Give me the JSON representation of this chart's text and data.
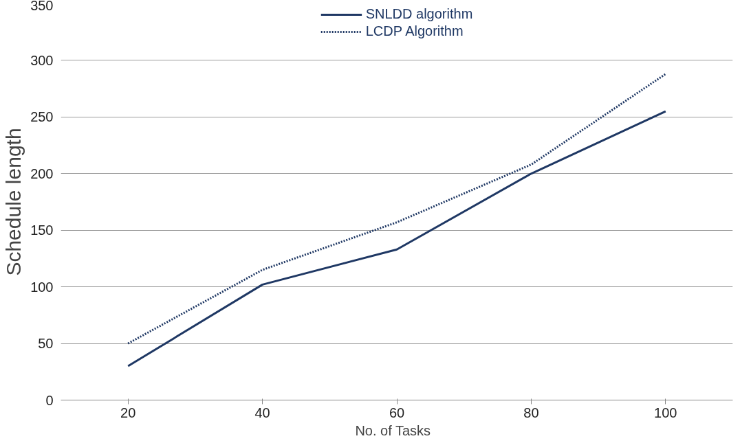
{
  "chart_data": {
    "type": "line",
    "xlabel": "No.  of  Tasks",
    "ylabel": "Schedule length",
    "categories": [
      "20",
      "40",
      "60",
      "80",
      "100"
    ],
    "series": [
      {
        "name": "SNLDD algorithm",
        "color": "#1f3864",
        "values": [
          30,
          102,
          133,
          200,
          255
        ],
        "line_style": "solid"
      },
      {
        "name": "LCDP Algorithm",
        "color": "#1f3864",
        "values": [
          50,
          115,
          157,
          208,
          288
        ],
        "line_style": "dotted"
      }
    ],
    "ylim": [
      0,
      350
    ],
    "yticks": [
      0,
      50,
      100,
      150,
      200,
      250,
      300,
      350
    ],
    "grid": "y",
    "legend": "top",
    "marker": "none"
  }
}
